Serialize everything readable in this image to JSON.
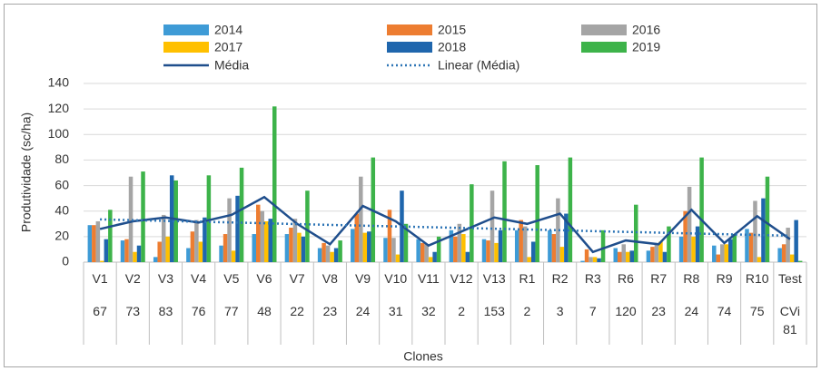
{
  "chart_data": {
    "type": "bar",
    "x_label": "Clones",
    "y_label": "Produtividade (sc/ha)",
    "categories": [
      "V1",
      "V2",
      "V3",
      "V4",
      "V5",
      "V6",
      "V7",
      "V8",
      "V9",
      "V10",
      "V11",
      "V12",
      "V13",
      "R1",
      "R2",
      "R3",
      "R6",
      "R7",
      "R8",
      "R9",
      "R10",
      "Test"
    ],
    "subcategories": [
      "67",
      "73",
      "83",
      "76",
      "77",
      "48",
      "22",
      "23",
      "24",
      "31",
      "32",
      "2",
      "153",
      "2",
      "3",
      "7",
      "120",
      "23",
      "24",
      "74",
      "75",
      "CVi 81"
    ],
    "ylim": [
      0,
      140
    ],
    "yticks": [
      0,
      20,
      40,
      60,
      80,
      100,
      120,
      140
    ],
    "grid": true,
    "series": [
      {
        "name": "2014",
        "type": "bar",
        "color": "#3e9bd6",
        "values": [
          29,
          17,
          4,
          11,
          13,
          22,
          22,
          11,
          26,
          19,
          18,
          25,
          18,
          25,
          25,
          1,
          11,
          9,
          20,
          13,
          26,
          11
        ]
      },
      {
        "name": "2015",
        "type": "bar",
        "color": "#ed7d31",
        "values": [
          29,
          18,
          16,
          24,
          22,
          45,
          27,
          15,
          38,
          41,
          15,
          20,
          17,
          33,
          22,
          10,
          8,
          12,
          40,
          6,
          23,
          14
        ]
      },
      {
        "name": "2016",
        "type": "bar",
        "color": "#a5a5a5",
        "values": [
          32,
          67,
          37,
          33,
          50,
          40,
          34,
          13,
          67,
          19,
          14,
          30,
          56,
          28,
          50,
          4,
          14,
          14,
          59,
          14,
          48,
          27
        ]
      },
      {
        "name": "2017",
        "type": "bar",
        "color": "#ffc000",
        "values": [
          1,
          8,
          20,
          16,
          9,
          32,
          23,
          8,
          23,
          6,
          4,
          22,
          15,
          4,
          12,
          4,
          8,
          16,
          20,
          14,
          4,
          6
        ]
      },
      {
        "name": "2018",
        "type": "bar",
        "color": "#1f66ad",
        "values": [
          18,
          13,
          68,
          35,
          52,
          34,
          20,
          11,
          24,
          56,
          8,
          8,
          25,
          16,
          38,
          3,
          9,
          8,
          28,
          18,
          50,
          33
        ]
      },
      {
        "name": "2019",
        "type": "bar",
        "color": "#3db34a",
        "values": [
          41,
          71,
          64,
          68,
          74,
          122,
          56,
          17,
          82,
          30,
          20,
          61,
          79,
          76,
          82,
          25,
          45,
          28,
          82,
          22,
          67,
          1
        ]
      },
      {
        "name": "Média",
        "type": "line",
        "color": "#1f4e8c",
        "values": [
          26,
          32,
          35,
          31,
          37,
          51,
          30,
          14,
          44,
          32,
          13,
          24,
          35,
          30,
          38,
          8,
          17,
          14,
          41,
          15,
          36,
          18
        ]
      },
      {
        "name": "Linear (Média)",
        "type": "line",
        "dotted": true,
        "color": "#2e75b6",
        "values": [
          33.5,
          32.9,
          32.3,
          31.7,
          31.1,
          30.5,
          29.8,
          29.2,
          28.6,
          28,
          27.4,
          26.8,
          26.2,
          25.6,
          25,
          24.3,
          23.7,
          23.1,
          22.5,
          21.9,
          21.3,
          20.7
        ]
      }
    ]
  }
}
